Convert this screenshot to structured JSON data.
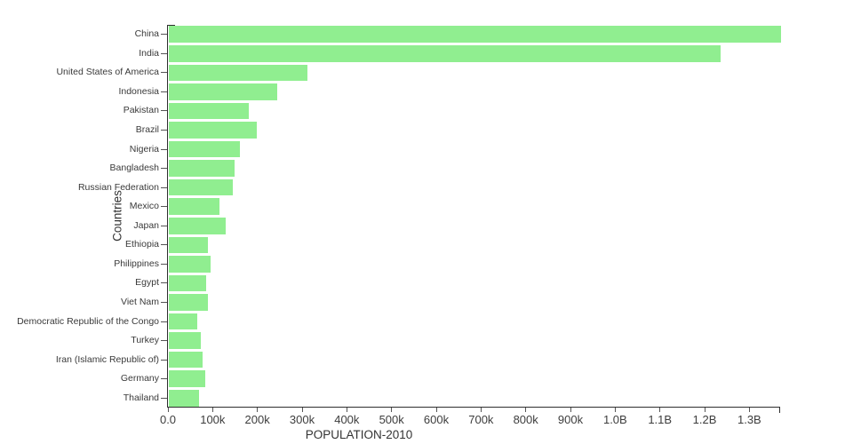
{
  "chart_data": {
    "type": "bar",
    "orientation": "horizontal",
    "title": "",
    "xlabel": "POPULATION-2010",
    "ylabel": "Countries",
    "bar_color": "#90ee90",
    "background_color": "#ffffff",
    "axis_color": "#2e2e2e",
    "grid": false,
    "legend": false,
    "xlim": [
      0,
      1368811
    ],
    "x_ticks": [
      {
        "value": 0,
        "label": "0.0"
      },
      {
        "value": 100000,
        "label": "100k"
      },
      {
        "value": 200000,
        "label": "200k"
      },
      {
        "value": 300000,
        "label": "300k"
      },
      {
        "value": 400000,
        "label": "400k"
      },
      {
        "value": 500000,
        "label": "500k"
      },
      {
        "value": 600000,
        "label": "600k"
      },
      {
        "value": 700000,
        "label": "700k"
      },
      {
        "value": 800000,
        "label": "800k"
      },
      {
        "value": 900000,
        "label": "900k"
      },
      {
        "value": 1000000,
        "label": "1.0B"
      },
      {
        "value": 1100000,
        "label": "1.1B"
      },
      {
        "value": 1200000,
        "label": "1.2B"
      },
      {
        "value": 1300000,
        "label": "1.3B"
      }
    ],
    "categories": [
      "China",
      "India",
      "United States of America",
      "Indonesia",
      "Pakistan",
      "Brazil",
      "Nigeria",
      "Bangladesh",
      "Russian Federation",
      "Mexico",
      "Japan",
      "Ethiopia",
      "Philippines",
      "Egypt",
      "Viet Nam",
      "Democratic Republic of the Congo",
      "Turkey",
      "Iran (Islamic Republic of)",
      "Germany",
      "Thailand"
    ],
    "values": [
      1368811,
      1234281,
      309011,
      241834,
      179425,
      195714,
      158503,
      147575,
      143479,
      114093,
      128070,
      87640,
      93967,
      82761,
      87968,
      64564,
      72326,
      74573,
      81325,
      67195
    ]
  }
}
